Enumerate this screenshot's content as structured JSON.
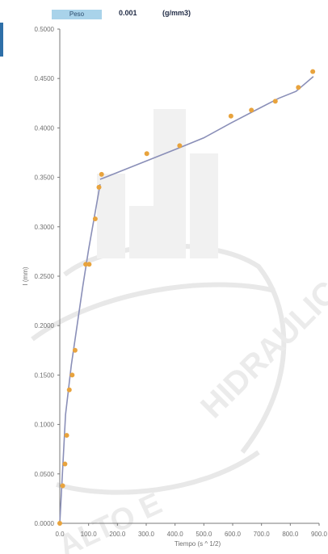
{
  "header": {
    "label": "Peso",
    "value": "0.001",
    "unit": "(g/mm3)"
  },
  "chart_data": {
    "type": "scatter",
    "xlabel": "Tiempo (s ^ 1/2)",
    "ylabel": "I (mm)",
    "xlim": [
      0,
      900
    ],
    "ylim": [
      0,
      0.5
    ],
    "x_ticks": [
      "0.0",
      "100.0",
      "200.0",
      "300.0",
      "400.0",
      "500.0",
      "600.0",
      "700.0",
      "800.0",
      "900.0"
    ],
    "y_ticks": [
      "0.0000",
      "0.0500",
      "0.1000",
      "0.1500",
      "0.2000",
      "0.2500",
      "0.3000",
      "0.3500",
      "0.4000",
      "0.4500",
      "0.5000"
    ],
    "series": [
      {
        "type": "scatter",
        "color": "#e8a33d",
        "x": [
          0,
          10,
          18,
          24,
          33,
          43,
          53,
          90,
          102,
          123,
          136,
          145,
          302,
          416,
          594,
          665,
          748,
          828,
          878
        ],
        "y": [
          0,
          0.038,
          0.06,
          0.089,
          0.135,
          0.15,
          0.175,
          0.262,
          0.262,
          0.308,
          0.34,
          0.353,
          0.374,
          0.382,
          0.412,
          0.418,
          0.427,
          0.441,
          0.457
        ]
      },
      {
        "type": "line",
        "color": "#8a8fb8",
        "x": [
          0,
          20,
          40,
          60,
          80,
          100,
          120,
          140
        ],
        "y": [
          0,
          0.11,
          0.16,
          0.2,
          0.24,
          0.277,
          0.31,
          0.343
        ]
      },
      {
        "type": "line",
        "color": "#8a8fb8",
        "x": [
          140,
          416,
          500,
          594,
          680,
          760,
          820,
          880
        ],
        "y": [
          0.348,
          0.38,
          0.39,
          0.405,
          0.418,
          0.43,
          0.437,
          0.452
        ]
      }
    ]
  }
}
